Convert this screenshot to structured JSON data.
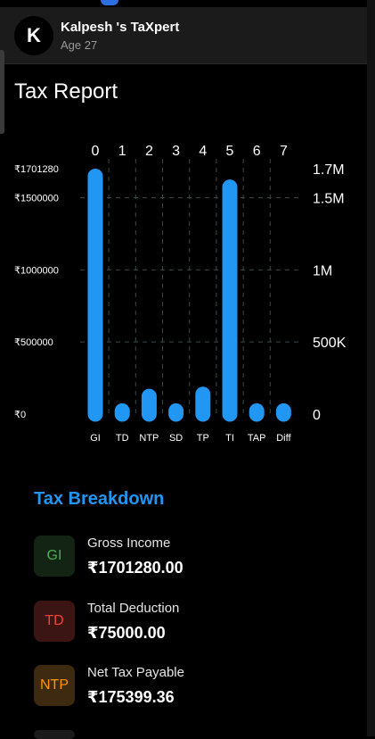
{
  "header": {
    "avatar_initial": "K",
    "title": "Kalpesh 's TaXpert",
    "subtitle": "Age 27"
  },
  "page_title": "Tax Report",
  "chart_data": {
    "type": "bar",
    "categories": [
      "GI",
      "TD",
      "NTP",
      "SD",
      "TP",
      "TI",
      "TAP",
      "Diff"
    ],
    "index_labels": [
      "0",
      "1",
      "2",
      "3",
      "4",
      "5",
      "6",
      "7"
    ],
    "values": [
      1701280,
      75000,
      175399.36,
      75000,
      190000,
      1626280,
      75000,
      75000
    ],
    "ylim": [
      0,
      1701280
    ],
    "left_ticks": [
      {
        "value": 0,
        "label": "₹0"
      },
      {
        "value": 500000,
        "label": "₹500000"
      },
      {
        "value": 1000000,
        "label": "₹1000000"
      },
      {
        "value": 1500000,
        "label": "₹1500000"
      },
      {
        "value": 1701280,
        "label": "₹1701280"
      }
    ],
    "right_ticks": [
      {
        "value": 0,
        "label": "0"
      },
      {
        "value": 500000,
        "label": "500K"
      },
      {
        "value": 1000000,
        "label": "1M"
      },
      {
        "value": 1500000,
        "label": "1.5M"
      },
      {
        "value": 1701280,
        "label": "1.7M"
      }
    ],
    "bar_color": "#2196f3",
    "grid_color": "#3a4a4a"
  },
  "breakdown": {
    "title": "Tax Breakdown",
    "items": [
      {
        "code": "GI",
        "label": "Gross Income",
        "value": "₹1701280.00",
        "fg": "#4caf50",
        "bg": "#142414"
      },
      {
        "code": "TD",
        "label": "Total Deduction",
        "value": "₹75000.00",
        "fg": "#f44336",
        "bg": "#3a1513"
      },
      {
        "code": "NTP",
        "label": "Net Tax Payable",
        "value": "₹175399.36",
        "fg": "#ff9800",
        "bg": "#3d2a10"
      }
    ]
  }
}
